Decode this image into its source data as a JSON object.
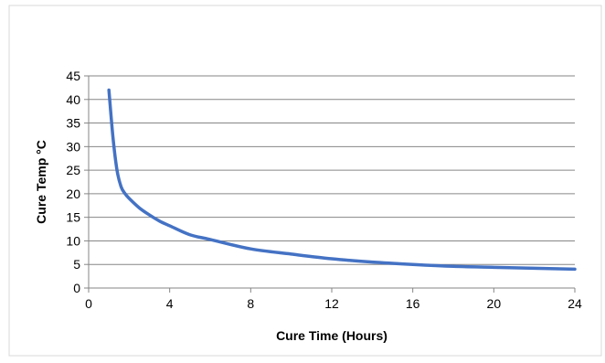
{
  "chart_data": {
    "type": "line",
    "title": "",
    "xlabel": "Cure Time (Hours)",
    "ylabel": "Cure Temp °C",
    "xlim": [
      0,
      24
    ],
    "ylim": [
      0,
      45
    ],
    "x_ticks": [
      0,
      4,
      8,
      12,
      16,
      20,
      24
    ],
    "y_ticks": [
      0,
      5,
      10,
      15,
      20,
      25,
      30,
      35,
      40,
      45
    ],
    "grid": "horizontal",
    "legend": "none",
    "series": [
      {
        "color": "#4472C4",
        "x": [
          1,
          1.2,
          1.4,
          1.6,
          1.8,
          2,
          2.5,
          3,
          3.5,
          4,
          5,
          6,
          8,
          10,
          12,
          14,
          16,
          18,
          20,
          22,
          24
        ],
        "y": [
          42,
          32,
          25,
          21.5,
          20,
          19,
          17,
          15.5,
          14.2,
          13.2,
          11.3,
          10.3,
          8.3,
          7.2,
          6.2,
          5.5,
          5,
          4.6,
          4.4,
          4.2,
          4
        ]
      }
    ]
  }
}
